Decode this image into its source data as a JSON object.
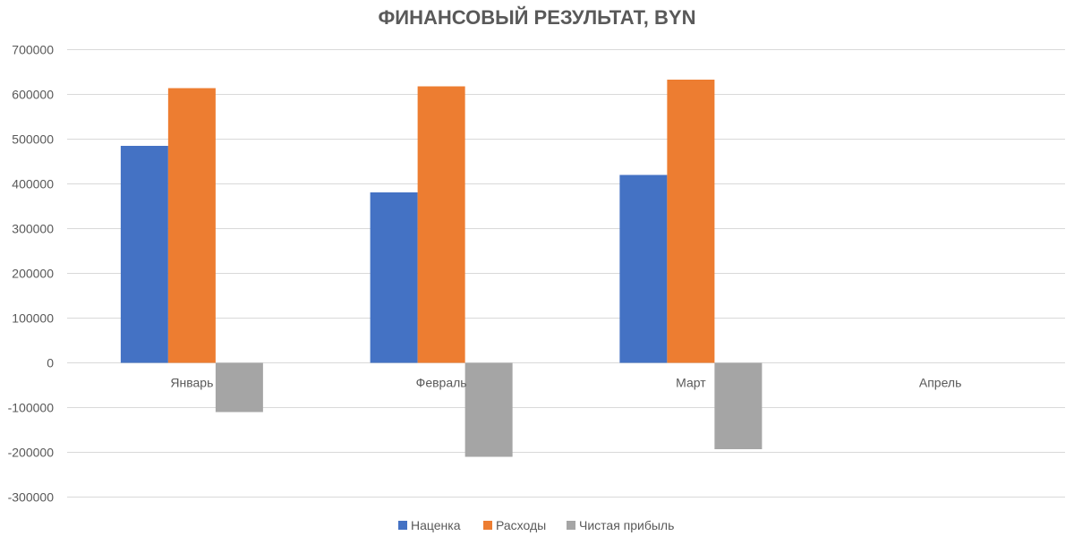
{
  "chart_data": {
    "type": "bar",
    "title": "ФИНАНСОВЫЙ РЕЗУЛЬТАТ, BYN",
    "xlabel": "",
    "ylabel": "",
    "categories": [
      "Январь",
      "Февраль",
      "Март",
      "Апрель"
    ],
    "series": [
      {
        "name": "Наценка",
        "color": "#4472c4",
        "values": [
          485000,
          381000,
          420000,
          null
        ]
      },
      {
        "name": "Расходы",
        "color": "#ed7d31",
        "values": [
          614000,
          618000,
          633000,
          null
        ]
      },
      {
        "name": "Чистая прибыль",
        "color": "#a5a5a5",
        "values": [
          -110000,
          -210000,
          -193000,
          null
        ]
      }
    ],
    "ylim": [
      -300000,
      700000
    ],
    "yticks": [
      "700000",
      "600000",
      "500000",
      "400000",
      "300000",
      "200000",
      "100000",
      "0",
      "-100000",
      "-200000",
      "-300000"
    ],
    "grid": true,
    "legend_position": "bottom"
  }
}
